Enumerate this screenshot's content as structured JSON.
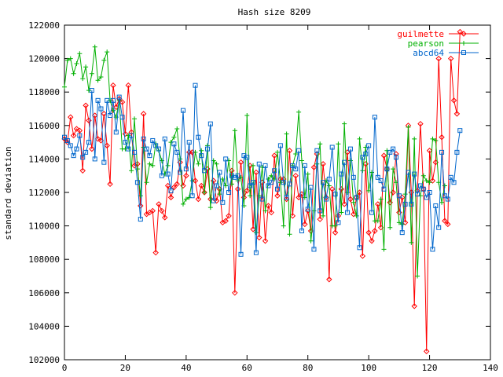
{
  "chart_data": {
    "type": "line",
    "title": "Hash size 8209",
    "xlabel": "",
    "ylabel": "standard deviation",
    "xlim": [
      0,
      140
    ],
    "ylim": [
      102000,
      122000
    ],
    "x_ticks": [
      "0",
      "20",
      "40",
      "60",
      "80",
      "100",
      "120",
      "140"
    ],
    "y_ticks": [
      "102000",
      "104000",
      "106000",
      "108000",
      "110000",
      "112000",
      "114000",
      "116000",
      "118000",
      "120000",
      "122000"
    ],
    "grid": false,
    "legend_position": "top-right",
    "series": [
      {
        "name": "guilmette",
        "color": "#ff0000",
        "marker": "diamond",
        "values": [
          115200,
          115000,
          116500,
          115400,
          115800,
          115700,
          113300,
          117200,
          116300,
          114600,
          116600,
          115200,
          115100,
          116700,
          114800,
          112500,
          118400,
          117100,
          117600,
          117400,
          115500,
          118400,
          115600,
          113600,
          113700,
          111200,
          116700,
          110700,
          110800,
          110900,
          108400,
          111300,
          110900,
          110500,
          112400,
          111700,
          112300,
          112500,
          113800,
          112400,
          113000,
          114400,
          114400,
          112700,
          111600,
          112400,
          112000,
          113400,
          111600,
          112700,
          111500,
          112200,
          110200,
          110300,
          110600,
          113300,
          106000,
          112200,
          113800,
          111700,
          112100,
          113600,
          109800,
          113200,
          109300,
          112600,
          109100,
          111200,
          110800,
          114200,
          111800,
          112800,
          112800,
          111600,
          114500,
          110600,
          113000,
          111700,
          111900,
          110100,
          110900,
          109700,
          113500,
          114300,
          110400,
          113700,
          111700,
          106800,
          112200,
          109600,
          110600,
          112200,
          111300,
          114400,
          111600,
          110700,
          111700,
          112000,
          108200,
          113700,
          109600,
          109100,
          109700,
          111300,
          109900,
          114200,
          113400,
          111400,
          112000,
          114300,
          110800,
          111700,
          110200,
          116000,
          112000,
          105200,
          112100,
          116100,
          112200,
          102500,
          114500,
          112700,
          113800,
          120000,
          115300,
          110300,
          110100,
          120000,
          117500,
          116700,
          121600
        ],
        "x_start": 0
      },
      {
        "name": "pearson",
        "color": "#00b000",
        "marker": "plus",
        "values": [
          118300,
          119900,
          120000,
          119100,
          119700,
          120300,
          118800,
          119500,
          118100,
          119100,
          120700,
          118700,
          118900,
          119900,
          120400,
          117500,
          116900,
          116500,
          117500,
          114600,
          114600,
          115400,
          113300,
          116400,
          113400,
          111800,
          114700,
          112600,
          113700,
          113600,
          114900,
          114500,
          113900,
          113100,
          113600,
          115000,
          115300,
          115800,
          114000,
          111300,
          111600,
          111700,
          112700,
          114400,
          113700,
          114500,
          112000,
          114800,
          111100,
          113900,
          113700,
          111900,
          112800,
          112400,
          113900,
          112500,
          115700,
          112700,
          112900,
          111200,
          116600,
          111800,
          113600,
          109600,
          111800,
          113500,
          110900,
          112800,
          113000,
          112800,
          114400,
          112600,
          110000,
          115500,
          109500,
          113600,
          114300,
          116800,
          113900,
          111700,
          113100,
          109100,
          110900,
          113700,
          114900,
          110600,
          112700,
          112400,
          110000,
          110000,
          114900,
          110800,
          116100,
          112000,
          113900,
          111400,
          110600,
          115200,
          113300,
          114700,
          112100,
          113200,
          110300,
          110300,
          111600,
          108600,
          114500,
          109900,
          113400,
          112600,
          110200,
          110100,
          111900,
          115900,
          109000,
          115200,
          107000,
          111800,
          113000,
          112700,
          112600,
          115200,
          115100,
          112600,
          111400,
          112400
        ],
        "x_start": 0
      },
      {
        "name": "abcd64",
        "color": "#0066cc",
        "marker": "square",
        "values": [
          115300,
          115100,
          114800,
          114200,
          114600,
          115400,
          114100,
          114400,
          115000,
          118100,
          114000,
          117500,
          117000,
          113800,
          117500,
          116600,
          117500,
          115600,
          117700,
          116500,
          115000,
          114600,
          115400,
          114400,
          112600,
          110400,
          115200,
          114600,
          114200,
          115100,
          114800,
          114600,
          113000,
          115200,
          113100,
          112100,
          114900,
          114400,
          113200,
          116900,
          113400,
          115000,
          111800,
          118400,
          115300,
          114200,
          113300,
          114600,
          116100,
          111500,
          112400,
          113200,
          111400,
          114000,
          112000,
          113000,
          112900,
          113000,
          108300,
          114200,
          114100,
          112400,
          112600,
          108400,
          113700,
          111600,
          113600,
          112400,
          112600,
          113300,
          112200,
          114800,
          112600,
          111700,
          112500,
          113600,
          113400,
          114500,
          109700,
          113600,
          111000,
          112300,
          108600,
          114500,
          110900,
          112600,
          111600,
          112800,
          114700,
          111900,
          110200,
          113100,
          113800,
          110800,
          114600,
          112900,
          111700,
          108700,
          114100,
          114300,
          114800,
          110800,
          116500,
          112900,
          112700,
          112200,
          113400,
          114400,
          114600,
          114100,
          111800,
          109600,
          111300,
          113200,
          111300,
          113100,
          111900,
          112400,
          112200,
          111700,
          112000,
          108600,
          111200,
          109900,
          114400,
          111800,
          111600,
          112900,
          112600,
          114400,
          115700
        ],
        "x_start": 0
      }
    ]
  }
}
